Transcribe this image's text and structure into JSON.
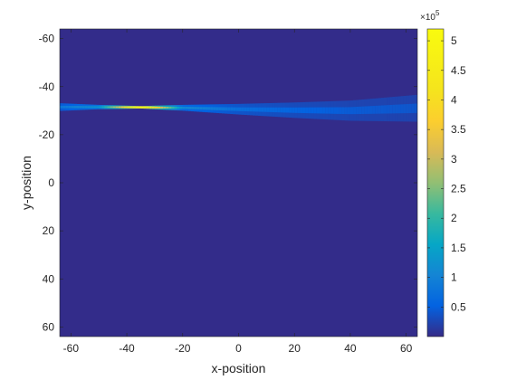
{
  "chart_data": {
    "type": "heatmap",
    "title": "",
    "xlabel": "x-position",
    "ylabel": "y-position",
    "xlim": [
      -64,
      64
    ],
    "ylim": [
      -64,
      64
    ],
    "y_direction": "reverse",
    "x_ticks": [
      -60,
      -40,
      -20,
      0,
      20,
      40,
      60
    ],
    "y_ticks": [
      -60,
      -40,
      -20,
      0,
      20,
      40,
      60
    ],
    "grid": false,
    "colormap": "parula",
    "colorbar": {
      "clim": [
        0,
        520000
      ],
      "ticks": [
        0.5,
        1,
        1.5,
        2,
        2.5,
        3,
        3.5,
        4,
        4.5,
        5
      ],
      "tick_labels": [
        "0.5",
        "1",
        "1.5",
        "2",
        "2.5",
        "3",
        "3.5",
        "4",
        "4.5",
        "5"
      ],
      "exponent_label": "×10",
      "exponent": "5",
      "scale": 100000,
      "location": "right"
    },
    "background_value": 2000,
    "features": [
      {
        "name": "beam",
        "description_points": [
          {
            "x": -64,
            "y_center": -31.5,
            "half_width": 1.6,
            "value": 80000
          },
          {
            "x": -50,
            "y_center": -31.5,
            "half_width": 0.9,
            "value": 130000
          },
          {
            "x": -35,
            "y_center": -31.4,
            "half_width": 0.5,
            "value": 520000
          },
          {
            "x": -20,
            "y_center": -31.2,
            "half_width": 1.2,
            "value": 110000
          },
          {
            "x": 0,
            "y_center": -30.6,
            "half_width": 2.2,
            "value": 70000
          },
          {
            "x": 20,
            "y_center": -30.2,
            "half_width": 3.2,
            "value": 55000
          },
          {
            "x": 40,
            "y_center": -30.0,
            "half_width": 4.2,
            "value": 45000
          },
          {
            "x": 64,
            "y_center": -31.0,
            "half_width": 5.6,
            "value": 40000
          }
        ]
      }
    ]
  }
}
